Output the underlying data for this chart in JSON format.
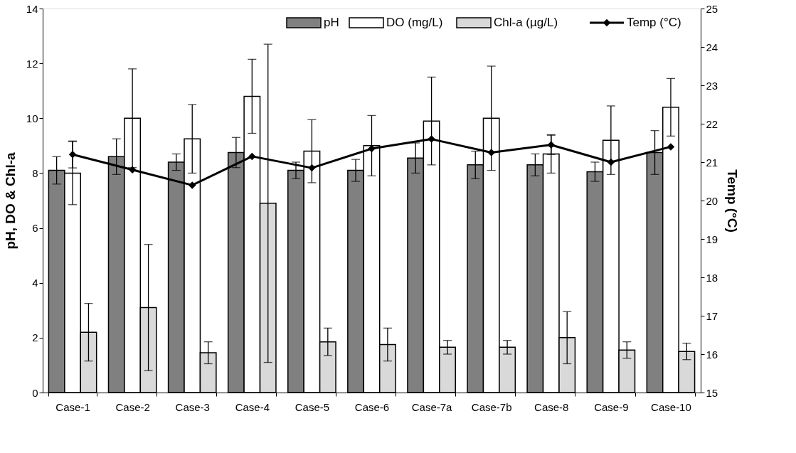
{
  "chart_data": {
    "type": "bar",
    "ylabel": "pH, DO & Chl-a",
    "y2label": "Temp (°C)",
    "categories": [
      "Case-1",
      "Case-2",
      "Case-3",
      "Case-4",
      "Case-5",
      "Case-6",
      "Case-7a",
      "Case-7b",
      "Case-8",
      "Case-9",
      "Case-10"
    ],
    "ylim": [
      0,
      14
    ],
    "yticks": [
      0,
      2,
      4,
      6,
      8,
      10,
      12,
      14
    ],
    "y2lim": [
      15,
      25
    ],
    "y2ticks": [
      15,
      16,
      17,
      18,
      19,
      20,
      21,
      22,
      23,
      24,
      25
    ],
    "grid": false,
    "legend": "top right",
    "marker": "diamond",
    "line_style": "solid",
    "series": [
      {
        "name": "pH",
        "color": "#808080",
        "values": [
          8.1,
          8.6,
          8.4,
          8.75,
          8.1,
          8.1,
          8.55,
          8.3,
          8.3,
          8.05,
          8.75
        ],
        "errors": [
          0.5,
          0.65,
          0.3,
          0.55,
          0.3,
          0.4,
          0.55,
          0.5,
          0.4,
          0.35,
          0.8
        ]
      },
      {
        "name": "DO (mg/L)",
        "color": "#ffffff",
        "values": [
          8.0,
          10.0,
          9.25,
          10.8,
          8.8,
          9.0,
          9.9,
          10.0,
          8.7,
          9.2,
          10.4
        ],
        "errors": [
          1.15,
          1.8,
          1.25,
          1.35,
          1.15,
          1.1,
          1.6,
          1.9,
          0.7,
          1.25,
          1.05
        ]
      },
      {
        "name": "Chl-a  (µg/L)",
        "color": "#d9d9d9",
        "values": [
          2.2,
          3.1,
          1.45,
          6.9,
          1.85,
          1.75,
          1.65,
          1.65,
          2.0,
          1.55,
          1.5
        ],
        "errors": [
          1.05,
          2.3,
          0.4,
          5.8,
          0.5,
          0.6,
          0.25,
          0.25,
          0.95,
          0.3,
          0.3
        ]
      },
      {
        "name": "Temp (°C)",
        "type": "line",
        "axis": "y2",
        "color": "#000000",
        "values": [
          21.2,
          20.8,
          20.4,
          21.15,
          20.85,
          21.35,
          21.6,
          21.25,
          21.45,
          21.0,
          21.4
        ],
        "errors": [
          0.35,
          null,
          null,
          null,
          null,
          null,
          null,
          null,
          0.25,
          null,
          null
        ]
      }
    ]
  }
}
